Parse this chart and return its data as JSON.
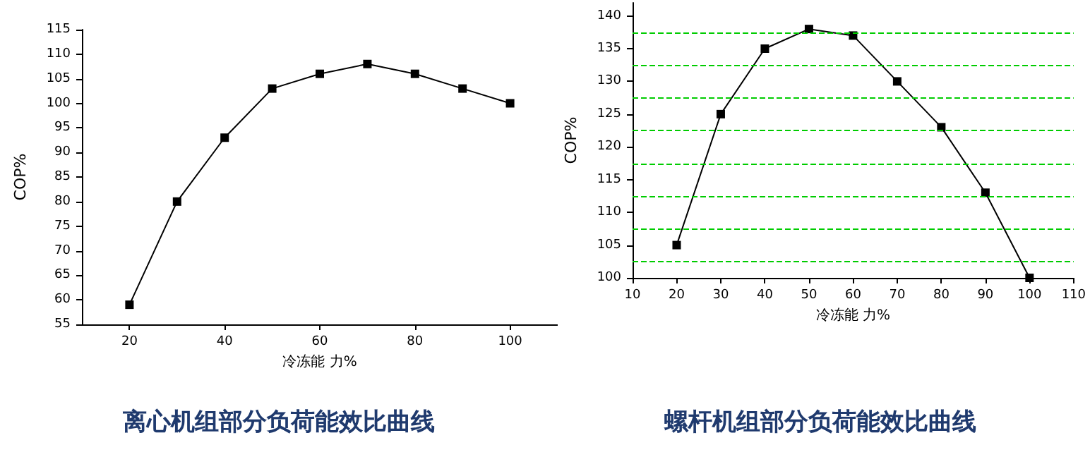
{
  "chart_data": [
    {
      "type": "line",
      "title": "离心机组部分负荷能效比曲线",
      "xlabel": "冷冻能 力%",
      "ylabel": "COP%",
      "x": [
        20,
        30,
        40,
        50,
        60,
        70,
        80,
        90,
        100
      ],
      "series": [
        {
          "color": "#000000",
          "values": [
            59,
            80,
            93,
            103,
            106,
            108,
            106,
            103,
            100
          ]
        }
      ],
      "xlim": [
        10,
        110
      ],
      "xticks": [
        20,
        40,
        60,
        80,
        100
      ],
      "ylim": [
        55,
        115
      ],
      "yticks": [
        55,
        60,
        65,
        70,
        75,
        80,
        85,
        90,
        95,
        100,
        105,
        110,
        115
      ],
      "grid": false,
      "marker": "square",
      "line_style": "solid"
    },
    {
      "type": "line",
      "title": "螺杆机组部分负荷能效比曲线",
      "xlabel": "冷冻能 力%",
      "ylabel": "COP%",
      "x": [
        20,
        30,
        40,
        50,
        60,
        70,
        80,
        90,
        100
      ],
      "series": [
        {
          "color": "#000000",
          "values": [
            105,
            125,
            135,
            138,
            137,
            130,
            123,
            113,
            100
          ]
        }
      ],
      "xlim": [
        10,
        110
      ],
      "xticks": [
        10,
        20,
        30,
        40,
        50,
        60,
        70,
        80,
        90,
        100,
        110
      ],
      "ylim": [
        100,
        142
      ],
      "yticks": [
        100,
        105,
        110,
        115,
        120,
        125,
        130,
        135,
        140
      ],
      "grid": false,
      "marker": "square",
      "line_style": "solid",
      "ref_lines": [
        {
          "axis": "y",
          "value": 102.5,
          "color": "#00cc00",
          "line_style": "dashed"
        },
        {
          "axis": "y",
          "value": 107.5,
          "color": "#00cc00",
          "line_style": "dashed"
        },
        {
          "axis": "y",
          "value": 112.5,
          "color": "#00cc00",
          "line_style": "dashed"
        },
        {
          "axis": "y",
          "value": 117.5,
          "color": "#00cc00",
          "line_style": "dashed"
        },
        {
          "axis": "y",
          "value": 122.5,
          "color": "#00cc00",
          "line_style": "dashed"
        },
        {
          "axis": "y",
          "value": 127.5,
          "color": "#00cc00",
          "line_style": "dashed"
        },
        {
          "axis": "y",
          "value": 132.5,
          "color": "#00cc00",
          "line_style": "dashed"
        },
        {
          "axis": "y",
          "value": 137.5,
          "color": "#00cc00",
          "line_style": "dashed"
        }
      ]
    }
  ]
}
